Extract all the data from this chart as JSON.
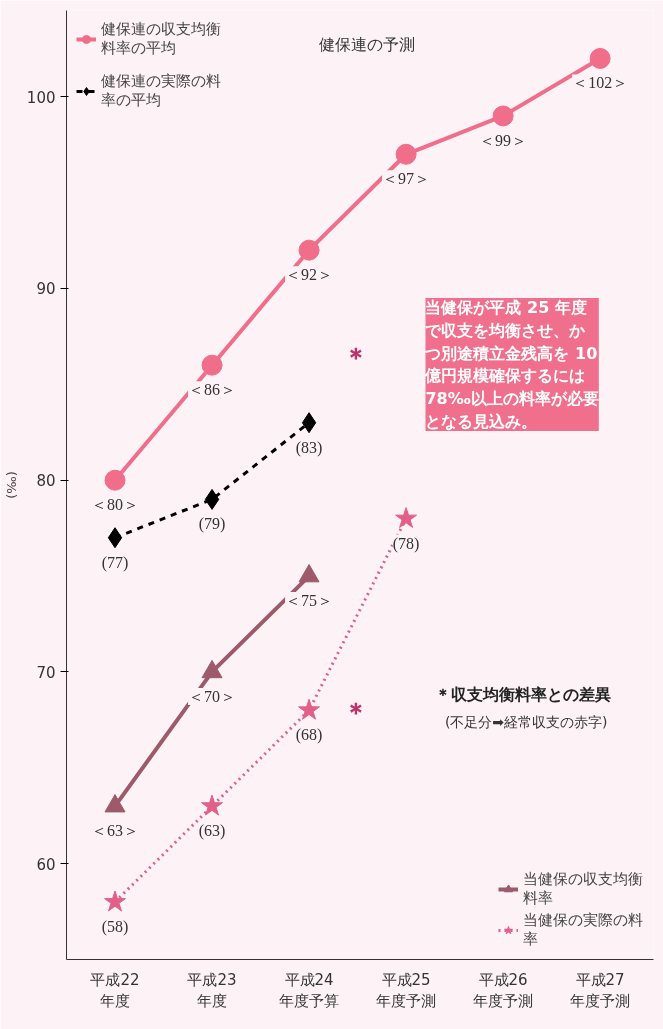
{
  "chart_data": {
    "type": "line",
    "ylabel": "(‰)",
    "categories": [
      "平成22\n年度",
      "平成23\n年度",
      "平成24\n年度予算",
      "平成25\n年度予測",
      "平成26\n年度予測",
      "平成27\n年度予測"
    ],
    "series": [
      {
        "name": "健保連の収支均衡料率の平均",
        "color": "#f06e8a",
        "marker": "circle",
        "line_style": "solid",
        "values": [
          80,
          86,
          92,
          97,
          99,
          102
        ],
        "value_labels": [
          "＜80＞",
          "＜86＞",
          "＜92＞",
          "＜97＞",
          "＜99＞",
          "＜102＞"
        ]
      },
      {
        "name": "健保連の実際の料率の平均",
        "color": "#000000",
        "marker": "diamond",
        "line_style": "dashed",
        "values": [
          77,
          79,
          83,
          null,
          null,
          null
        ],
        "value_labels": [
          "(77)",
          "(79)",
          "(83)",
          null,
          null,
          null
        ]
      },
      {
        "name": "当健保の収支均衡料率",
        "color": "#9c5a6a",
        "marker": "triangle",
        "line_style": "solid",
        "values": [
          63,
          70,
          75,
          null,
          null,
          null
        ],
        "value_labels": [
          "＜63＞",
          "＜70＞",
          "＜75＞",
          null,
          null,
          null
        ]
      },
      {
        "name": "当健保の実際の料率",
        "color": "#e0608a",
        "marker": "star",
        "line_style": "dotted",
        "values": [
          58,
          63,
          68,
          78,
          null,
          null
        ],
        "value_labels": [
          "(58)",
          "(63)",
          "(68)",
          "(78)",
          null,
          null
        ]
      }
    ],
    "ylim": [
      55,
      104.5
    ],
    "yticks": [
      60,
      70,
      80,
      90,
      100
    ],
    "legend": "top left",
    "annotations": [
      "健保連の予測",
      "当健保が平成 25 年度で収支を均衡させ、かつ別途積立金残高を 10 億円規模確保するには78‰以上の料率が必要となる見込み。",
      "＊",
      "＊",
      "＊収支均衡料率との差異",
      "(不足分➡経常収支の赤字)"
    ]
  }
}
